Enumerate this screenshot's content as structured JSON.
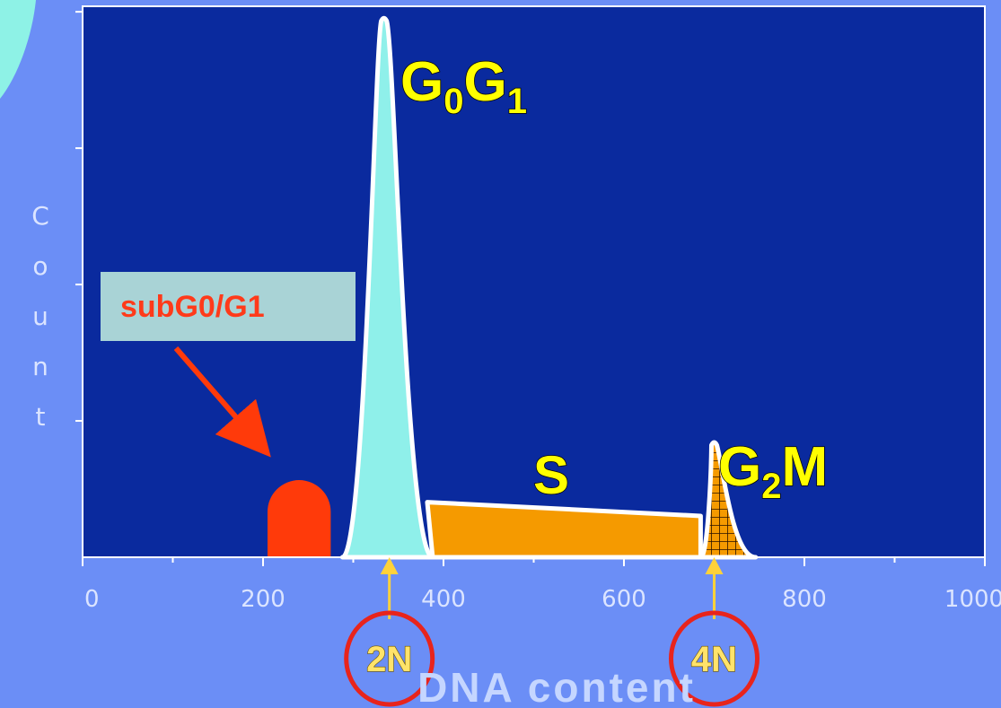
{
  "chart_data": {
    "type": "area",
    "title": "",
    "xlabel": "DNA content",
    "ylabel": "Count",
    "xlim": [
      0,
      1000
    ],
    "x_ticks": [
      "0",
      "200",
      "400",
      "600",
      "800",
      "1000"
    ],
    "y_scale": "relative",
    "regions": [
      {
        "name": "subG0/G1",
        "shape": "dome",
        "x_range": [
          205,
          275
        ],
        "peak": 0.14,
        "color": "#ff3a0a"
      },
      {
        "name": "G0G1",
        "shape": "peak",
        "x_range": [
          288,
          388
        ],
        "peak_x": 334,
        "peak": 0.98,
        "color": "#8ff0ea"
      },
      {
        "name": "S",
        "shape": "plateau",
        "x_range": [
          388,
          685
        ],
        "start_level": 0.1,
        "end_level": 0.075,
        "color": "#f59a00"
      },
      {
        "name": "G2M",
        "shape": "peak",
        "x_range": [
          685,
          746
        ],
        "peak_x": 700,
        "peak": 0.21,
        "color": "#f59a00",
        "pattern": "grid"
      }
    ],
    "phase_labels": {
      "g0g1": {
        "base1": "G",
        "sub1": "0",
        "base2": "G",
        "sub2": "1"
      },
      "s": "S",
      "g2m": {
        "base1": "G",
        "sub1": "2",
        "base2": "M"
      }
    },
    "markers": [
      {
        "label": "2N",
        "x": 340
      },
      {
        "label": "4N",
        "x": 700
      }
    ],
    "callout": {
      "text": "subG0/G1",
      "points_to": "subG0/G1"
    }
  },
  "colors": {
    "page_background": "#6b8ef6",
    "plot_background": "#0a2a9e",
    "axis": "#ffffff",
    "marker": "#ffd23a",
    "circle": "#e8241c",
    "callout_box": "#a9d3d6"
  }
}
